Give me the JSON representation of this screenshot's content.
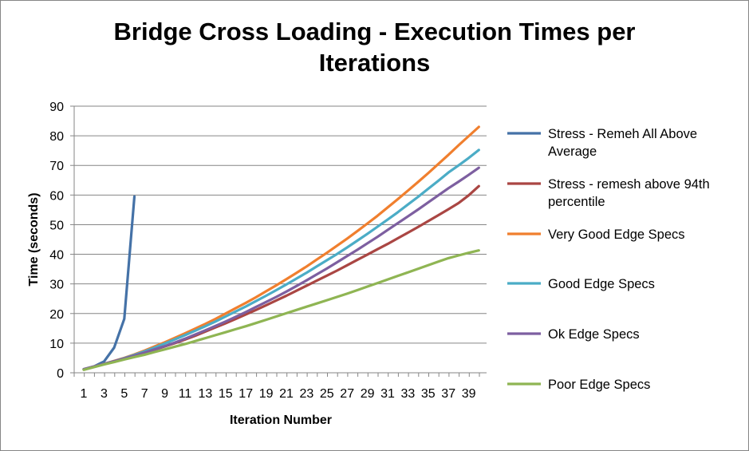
{
  "chart_data": {
    "type": "line",
    "title_line1": "Bridge Cross Loading - Execution Times per",
    "title_line2": "Iterations",
    "xlabel": "Iteration Number",
    "ylabel": "Time (seconds)",
    "ylim": [
      0,
      90
    ],
    "yticks": [
      0,
      10,
      20,
      30,
      40,
      50,
      60,
      70,
      80,
      90
    ],
    "xlim": [
      1,
      40
    ],
    "xtick_labels": [
      "1",
      "3",
      "5",
      "7",
      "9",
      "11",
      "13",
      "15",
      "17",
      "19",
      "21",
      "23",
      "25",
      "27",
      "29",
      "31",
      "33",
      "35",
      "37",
      "39"
    ],
    "grid": true,
    "legend_position": "right",
    "series": [
      {
        "name": "Stress - Remeh All Above Average",
        "legend_lines": [
          "Stress - Remeh All Above",
          "Average"
        ],
        "color": "#4572A7",
        "x": [
          1,
          2,
          3,
          4,
          5,
          6
        ],
        "y": [
          1.2,
          2.1,
          3.8,
          8.5,
          18.2,
          59.5
        ]
      },
      {
        "name": "Stress - remesh above 94th percentile",
        "legend_lines": [
          "Stress - remesh above 94th",
          "percentile"
        ],
        "color": "#AA4643",
        "x": [
          1,
          2,
          3,
          4,
          5,
          6,
          7,
          8,
          9,
          10,
          11,
          12,
          13,
          14,
          15,
          16,
          17,
          18,
          19,
          20,
          21,
          22,
          23,
          24,
          25,
          26,
          27,
          28,
          29,
          30,
          31,
          32,
          33,
          34,
          35,
          36,
          37,
          38,
          39,
          40
        ],
        "y": [
          1.2,
          2.1,
          3.0,
          3.9,
          4.8,
          5.8,
          6.8,
          7.8,
          8.9,
          10.0,
          11.2,
          12.5,
          13.9,
          15.3,
          16.7,
          18.2,
          19.7,
          21.2,
          22.8,
          24.4,
          26.0,
          27.7,
          29.4,
          31.1,
          32.8,
          34.5,
          36.3,
          38.1,
          39.9,
          41.7,
          43.5,
          45.4,
          47.3,
          49.2,
          51.2,
          53.2,
          55.2,
          57.3,
          59.9,
          63.0
        ]
      },
      {
        "name": "Very Good Edge Specs",
        "legend_lines": [
          "Very Good Edge Specs"
        ],
        "color": "#F07F2E",
        "x": [
          1,
          2,
          3,
          4,
          5,
          6,
          7,
          8,
          9,
          10,
          11,
          12,
          13,
          14,
          15,
          16,
          17,
          18,
          19,
          20,
          21,
          22,
          23,
          24,
          25,
          26,
          27,
          28,
          29,
          30,
          31,
          32,
          33,
          34,
          35,
          36,
          37,
          38,
          39,
          40
        ],
        "y": [
          1.2,
          2.1,
          3.0,
          4.0,
          5.0,
          6.2,
          7.5,
          8.9,
          10.3,
          11.8,
          13.3,
          14.9,
          16.5,
          18.2,
          20.0,
          21.8,
          23.6,
          25.5,
          27.5,
          29.5,
          31.6,
          33.7,
          35.9,
          38.2,
          40.5,
          42.9,
          45.3,
          47.8,
          50.4,
          53.0,
          55.8,
          58.6,
          61.5,
          64.4,
          67.4,
          70.5,
          73.6,
          76.8,
          79.9,
          83.0
        ]
      },
      {
        "name": "Good Edge Specs",
        "legend_lines": [
          "Good Edge Specs"
        ],
        "color": "#4BACC6",
        "x": [
          1,
          2,
          3,
          4,
          5,
          6,
          7,
          8,
          9,
          10,
          11,
          12,
          13,
          14,
          15,
          16,
          17,
          18,
          19,
          20,
          21,
          22,
          23,
          24,
          25,
          26,
          27,
          28,
          29,
          30,
          31,
          32,
          33,
          34,
          35,
          36,
          37,
          38,
          39,
          40
        ],
        "y": [
          1.2,
          2.1,
          3.0,
          3.9,
          4.9,
          6.0,
          7.2,
          8.5,
          9.9,
          11.3,
          12.7,
          14.2,
          15.7,
          17.3,
          19.0,
          20.7,
          22.4,
          24.2,
          26.0,
          27.9,
          29.8,
          31.8,
          33.8,
          35.9,
          38.0,
          40.1,
          42.3,
          44.6,
          46.9,
          49.3,
          51.7,
          54.2,
          56.8,
          59.4,
          62.1,
          64.8,
          67.6,
          70.0,
          72.5,
          75.2
        ]
      },
      {
        "name": "Ok Edge Specs",
        "legend_lines": [
          "Ok Edge Specs"
        ],
        "color": "#7D5FA0",
        "x": [
          1,
          2,
          3,
          4,
          5,
          6,
          7,
          8,
          9,
          10,
          11,
          12,
          13,
          14,
          15,
          16,
          17,
          18,
          19,
          20,
          21,
          22,
          23,
          24,
          25,
          26,
          27,
          28,
          29,
          30,
          31,
          32,
          33,
          34,
          35,
          36,
          37,
          38,
          39,
          40
        ],
        "y": [
          1.2,
          2.1,
          3.0,
          3.9,
          4.8,
          5.8,
          6.8,
          7.9,
          9.0,
          10.2,
          11.5,
          12.9,
          14.3,
          15.8,
          17.3,
          18.9,
          20.5,
          22.2,
          23.9,
          25.6,
          27.4,
          29.3,
          31.2,
          33.2,
          35.2,
          37.3,
          39.4,
          41.5,
          43.7,
          45.9,
          48.2,
          50.5,
          52.8,
          55.1,
          57.5,
          59.9,
          62.3,
          64.5,
          66.8,
          69.2
        ]
      },
      {
        "name": "Poor Edge Specs",
        "legend_lines": [
          "Poor Edge Specs"
        ],
        "color": "#8FB553",
        "x": [
          1,
          2,
          3,
          4,
          5,
          6,
          7,
          8,
          9,
          10,
          11,
          12,
          13,
          14,
          15,
          16,
          17,
          18,
          19,
          20,
          21,
          22,
          23,
          24,
          25,
          26,
          27,
          28,
          29,
          30,
          31,
          32,
          33,
          34,
          35,
          36,
          37,
          38,
          39,
          40
        ],
        "y": [
          1.0,
          1.9,
          2.8,
          3.6,
          4.5,
          5.3,
          6.1,
          7.0,
          7.9,
          8.8,
          9.7,
          10.7,
          11.7,
          12.7,
          13.7,
          14.7,
          15.7,
          16.8,
          17.9,
          19.0,
          20.1,
          21.2,
          22.3,
          23.4,
          24.5,
          25.6,
          26.7,
          27.9,
          29.1,
          30.3,
          31.5,
          32.7,
          33.9,
          35.1,
          36.3,
          37.5,
          38.7,
          39.6,
          40.5,
          41.3
        ]
      }
    ]
  }
}
